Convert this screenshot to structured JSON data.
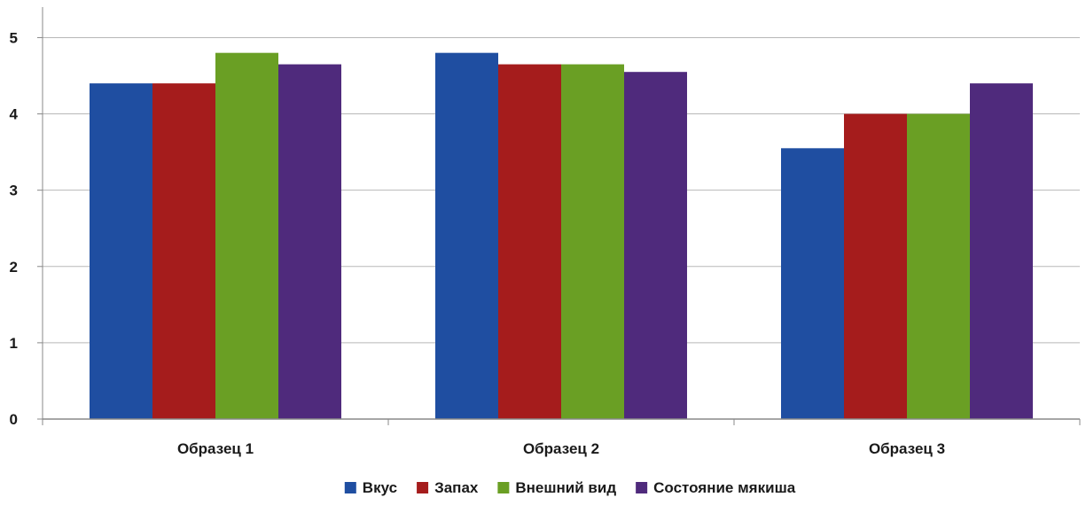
{
  "chart_data": {
    "type": "bar",
    "title": "",
    "xlabel": "",
    "ylabel": "",
    "categories": [
      "Образец 1",
      "Образец 2",
      "Образец 3"
    ],
    "ylim": [
      0,
      5.4
    ],
    "yticks": [
      "0",
      "1",
      "2",
      "3",
      "4",
      "5"
    ],
    "grid": true,
    "legend_position": "bottom",
    "series": [
      {
        "name": "Вкус",
        "color": "#1f4ea1",
        "values": [
          4.4,
          4.8,
          3.55
        ]
      },
      {
        "name": "Запах",
        "color": "#a51c1c",
        "values": [
          4.4,
          4.65,
          4.0
        ]
      },
      {
        "name": "Внешний вид",
        "color": "#6a9f24",
        "values": [
          4.8,
          4.65,
          4.0
        ]
      },
      {
        "name": "Состояние мякиша",
        "color": "#4f2a7c",
        "values": [
          4.65,
          4.55,
          4.4
        ]
      }
    ]
  }
}
